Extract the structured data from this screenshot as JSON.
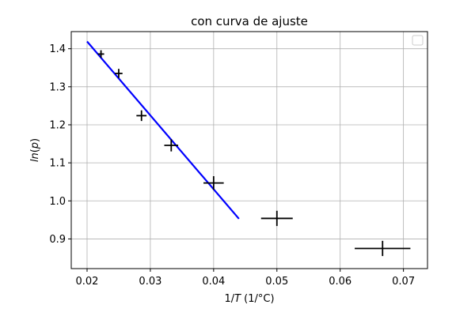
{
  "chart_data": {
    "type": "scatter",
    "title": "con curva de ajuste",
    "xlabel_parts": [
      "1/",
      "T",
      " (1/°C)"
    ],
    "ylabel_parts": [
      "ln",
      "(",
      "p",
      ")"
    ],
    "xlim": [
      0.0175,
      0.0738
    ],
    "ylim": [
      0.822,
      1.445
    ],
    "x_ticks": [
      0.02,
      0.03,
      0.04,
      0.05,
      0.06,
      0.07
    ],
    "x_tick_labels": [
      "0.02",
      "0.03",
      "0.04",
      "0.05",
      "0.06",
      "0.07"
    ],
    "y_ticks": [
      0.9,
      1.0,
      1.1,
      1.2,
      1.3,
      1.4
    ],
    "y_tick_labels": [
      "0.9",
      "1.0",
      "1.1",
      "1.2",
      "1.3",
      "1.4"
    ],
    "grid": true,
    "legend": {
      "placement": "top-right",
      "entries": []
    },
    "series": [
      {
        "kind": "errorbar",
        "color": "#000000",
        "points": [
          {
            "x": 0.0222,
            "y": 1.386,
            "xerr": 0.0005,
            "yerr": 0.01
          },
          {
            "x": 0.025,
            "y": 1.335,
            "xerr": 0.0006,
            "yerr": 0.012
          },
          {
            "x": 0.0286,
            "y": 1.224,
            "xerr": 0.0008,
            "yerr": 0.014
          },
          {
            "x": 0.0333,
            "y": 1.146,
            "xerr": 0.0011,
            "yerr": 0.016
          },
          {
            "x": 0.04,
            "y": 1.047,
            "xerr": 0.0016,
            "yerr": 0.018
          },
          {
            "x": 0.05,
            "y": 0.954,
            "xerr": 0.0025,
            "yerr": 0.02
          },
          {
            "x": 0.0667,
            "y": 0.875,
            "xerr": 0.0044,
            "yerr": 0.02
          }
        ]
      },
      {
        "kind": "line",
        "color": "#0000ff",
        "x": [
          0.02,
          0.044
        ],
        "y": [
          1.419,
          0.953
        ]
      }
    ]
  }
}
